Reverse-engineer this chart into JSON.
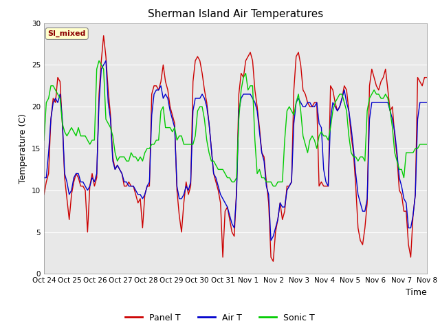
{
  "title": "Sherman Island Air Temperatures",
  "xlabel": "Time",
  "ylabel": "Temperature (C)",
  "xlim_days": [
    0,
    15
  ],
  "ylim": [
    0,
    30
  ],
  "yticks": [
    0,
    5,
    10,
    15,
    20,
    25,
    30
  ],
  "xtick_labels": [
    "Oct 24",
    "Oct 25",
    "Oct 26",
    "Oct 27",
    "Oct 28",
    "Oct 29",
    "Oct 30",
    "Oct 31",
    "Nov 1",
    "Nov 2",
    "Nov 3",
    "Nov 4",
    "Nov 5",
    "Nov 6",
    "Nov 7",
    "Nov 8"
  ],
  "xtick_positions": [
    0,
    1,
    2,
    3,
    4,
    5,
    6,
    7,
    8,
    9,
    10,
    11,
    12,
    13,
    14,
    15
  ],
  "annotation_text": "SI_mixed",
  "annotation_color": "#8B0000",
  "annotation_bg": "#FFFFCC",
  "line_colors": [
    "#CC0000",
    "#0000CC",
    "#00CC00"
  ],
  "line_labels": [
    "Panel T",
    "Air T",
    "Sonic T"
  ],
  "line_width": 1.0,
  "background_color": "#E8E8E8",
  "title_fontsize": 11,
  "axis_fontsize": 9,
  "tick_fontsize": 7.5,
  "legend_fontsize": 9,
  "panel_t": [
    9.5,
    11.0,
    12.0,
    18.5,
    21.0,
    20.5,
    23.5,
    23.0,
    18.0,
    11.5,
    9.0,
    6.5,
    9.5,
    11.0,
    12.0,
    11.5,
    10.5,
    10.5,
    10.0,
    5.0,
    10.5,
    12.0,
    10.5,
    11.5,
    21.5,
    25.5,
    28.5,
    26.0,
    22.0,
    19.0,
    14.0,
    12.5,
    13.0,
    12.5,
    12.0,
    10.5,
    10.5,
    11.0,
    10.5,
    10.5,
    9.5,
    8.5,
    9.0,
    5.5,
    9.5,
    10.5,
    10.5,
    21.5,
    22.5,
    22.5,
    22.0,
    23.0,
    25.0,
    23.0,
    22.0,
    20.0,
    19.0,
    18.0,
    10.0,
    7.0,
    5.0,
    8.5,
    11.0,
    9.5,
    10.5,
    23.0,
    25.5,
    26.0,
    25.5,
    24.0,
    22.0,
    20.5,
    18.0,
    15.0,
    12.0,
    11.0,
    10.0,
    8.5,
    2.0,
    7.5,
    8.0,
    6.5,
    5.0,
    4.5,
    10.0,
    21.5,
    24.0,
    23.5,
    25.5,
    26.0,
    26.5,
    25.5,
    22.0,
    20.0,
    17.5,
    14.5,
    14.0,
    11.0,
    8.5,
    2.0,
    1.5,
    5.0,
    6.5,
    8.5,
    6.5,
    7.5,
    10.5,
    10.5,
    11.0,
    22.0,
    26.0,
    26.5,
    25.0,
    22.0,
    21.5,
    20.5,
    20.0,
    20.0,
    20.5,
    20.5,
    10.5,
    11.0,
    10.5,
    10.5,
    10.5,
    22.5,
    22.0,
    20.5,
    19.5,
    20.0,
    21.0,
    22.5,
    22.0,
    19.5,
    16.5,
    14.5,
    10.5,
    5.5,
    4.0,
    3.5,
    5.5,
    8.5,
    22.5,
    24.5,
    23.5,
    22.5,
    22.0,
    23.0,
    23.5,
    24.5,
    22.0,
    19.5,
    20.0,
    16.5,
    14.0,
    10.0,
    9.5,
    7.5,
    7.5,
    3.5,
    2.0,
    7.0,
    9.5,
    23.5,
    23.0,
    22.5,
    23.5,
    23.5
  ],
  "air_t": [
    11.5,
    11.5,
    14.5,
    18.5,
    20.5,
    21.0,
    20.5,
    21.5,
    18.5,
    12.0,
    11.0,
    9.5,
    10.0,
    11.5,
    12.0,
    12.0,
    11.0,
    11.0,
    10.5,
    10.0,
    10.5,
    11.5,
    11.0,
    12.0,
    20.5,
    24.5,
    25.0,
    25.5,
    20.5,
    18.5,
    13.5,
    12.5,
    13.0,
    12.5,
    12.0,
    11.0,
    11.0,
    10.5,
    10.5,
    10.5,
    10.0,
    9.5,
    9.5,
    9.0,
    9.5,
    10.5,
    11.0,
    19.0,
    21.5,
    22.0,
    22.0,
    22.5,
    21.0,
    21.5,
    21.0,
    19.5,
    18.5,
    17.5,
    10.5,
    9.0,
    9.0,
    9.5,
    10.5,
    10.0,
    11.0,
    19.5,
    21.0,
    21.0,
    21.0,
    21.5,
    21.0,
    20.0,
    18.0,
    15.0,
    12.0,
    11.5,
    10.5,
    9.5,
    9.0,
    8.5,
    8.0,
    7.0,
    6.0,
    5.5,
    9.5,
    19.5,
    21.0,
    21.5,
    21.5,
    21.5,
    21.5,
    21.0,
    20.5,
    19.5,
    17.0,
    14.5,
    13.5,
    10.5,
    9.5,
    4.0,
    4.5,
    5.5,
    6.5,
    8.5,
    8.0,
    8.0,
    10.0,
    10.5,
    11.0,
    18.0,
    20.5,
    21.0,
    20.5,
    20.0,
    20.0,
    20.5,
    20.5,
    20.0,
    20.0,
    20.5,
    18.0,
    17.5,
    12.5,
    11.0,
    10.5,
    18.5,
    20.5,
    20.0,
    19.5,
    20.0,
    21.0,
    22.0,
    20.5,
    19.5,
    17.5,
    15.0,
    12.0,
    9.5,
    8.5,
    7.5,
    7.5,
    9.0,
    18.5,
    20.5,
    20.5,
    20.5,
    20.5,
    20.5,
    20.5,
    20.5,
    20.5,
    19.5,
    18.5,
    17.0,
    14.5,
    11.5,
    10.5,
    9.0,
    8.5,
    5.5,
    5.5,
    7.0,
    9.5,
    18.5,
    20.5,
    20.5,
    20.5,
    20.5
  ],
  "sonic_t": [
    16.0,
    20.5,
    21.0,
    22.5,
    22.5,
    22.0,
    21.5,
    21.0,
    18.0,
    17.0,
    16.5,
    17.0,
    17.5,
    17.0,
    16.5,
    17.5,
    16.5,
    16.5,
    16.5,
    16.0,
    15.5,
    16.0,
    16.0,
    24.5,
    25.5,
    25.0,
    24.5,
    18.5,
    18.0,
    17.5,
    16.5,
    14.5,
    13.5,
    14.0,
    14.0,
    14.0,
    13.5,
    13.5,
    14.5,
    14.0,
    14.0,
    13.5,
    14.0,
    13.5,
    14.5,
    15.0,
    15.0,
    15.5,
    15.5,
    16.0,
    16.0,
    19.5,
    20.0,
    17.5,
    17.5,
    17.5,
    17.0,
    17.5,
    16.0,
    16.5,
    16.5,
    15.5,
    15.5,
    15.5,
    15.5,
    15.5,
    16.5,
    19.5,
    20.0,
    20.0,
    18.5,
    16.0,
    14.5,
    13.5,
    13.5,
    13.0,
    12.5,
    12.5,
    12.5,
    12.0,
    11.5,
    11.5,
    11.0,
    11.0,
    11.5,
    18.5,
    22.0,
    23.5,
    24.0,
    22.0,
    22.5,
    22.5,
    16.0,
    12.0,
    12.5,
    11.5,
    11.5,
    11.0,
    11.0,
    11.0,
    10.5,
    10.5,
    11.0,
    11.0,
    11.0,
    16.0,
    19.5,
    20.0,
    19.5,
    19.0,
    20.5,
    21.5,
    19.5,
    16.5,
    15.5,
    14.5,
    16.0,
    16.5,
    16.0,
    15.0,
    16.5,
    17.0,
    16.5,
    16.5,
    16.0,
    17.5,
    19.5,
    20.5,
    21.0,
    21.5,
    21.5,
    20.5,
    19.5,
    16.5,
    14.5,
    14.0,
    14.0,
    13.5,
    14.0,
    14.0,
    13.5,
    19.5,
    21.0,
    21.5,
    22.0,
    21.5,
    21.5,
    21.0,
    21.0,
    21.5,
    21.0,
    19.5,
    17.5,
    14.5,
    13.5,
    12.5,
    12.5,
    11.5,
    14.5,
    14.5,
    14.5,
    14.5,
    15.0,
    15.0,
    15.5,
    15.5,
    15.5,
    15.5
  ]
}
